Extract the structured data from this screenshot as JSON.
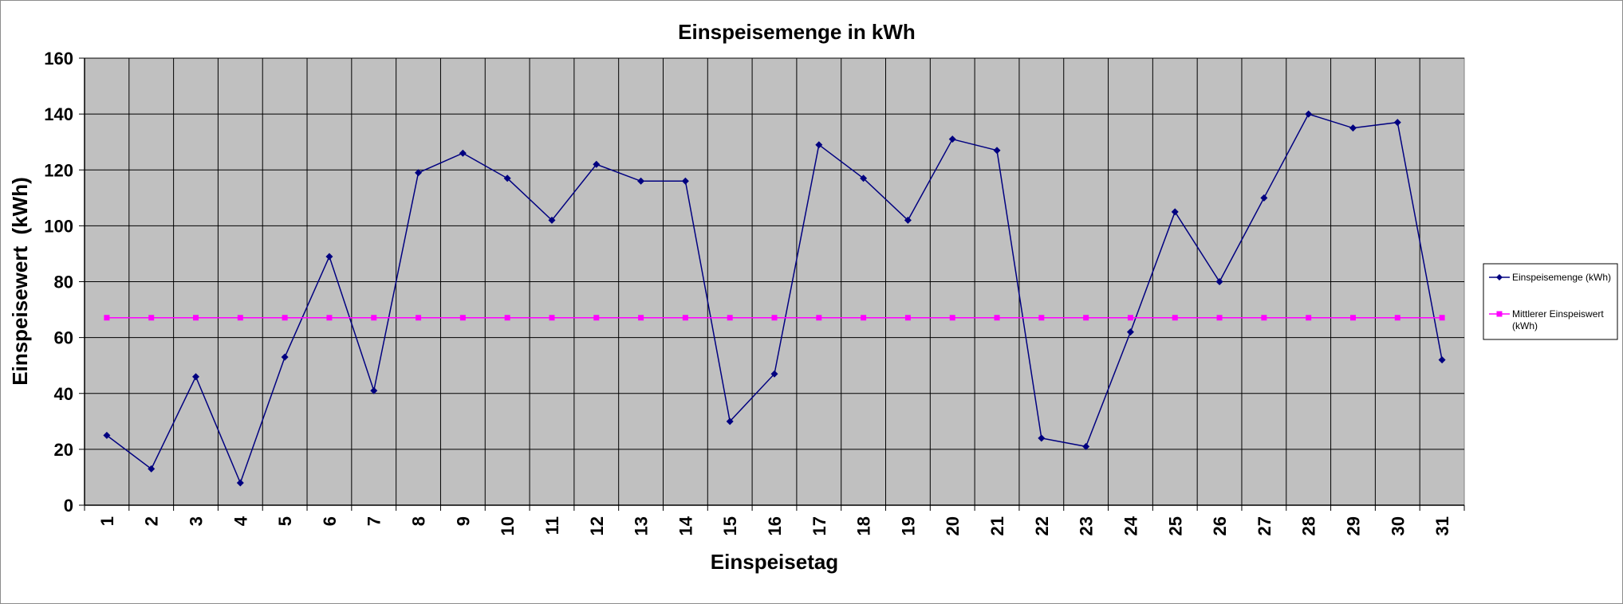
{
  "chart_data": {
    "type": "line",
    "title": "Einspeisemenge in kWh",
    "xlabel": "Einspeisetag",
    "ylabel": "Einspeisewert  (kWh)",
    "categories": [
      "1",
      "2",
      "3",
      "4",
      "5",
      "6",
      "7",
      "8",
      "9",
      "10",
      "11",
      "12",
      "13",
      "14",
      "15",
      "16",
      "17",
      "18",
      "19",
      "20",
      "21",
      "22",
      "23",
      "24",
      "25",
      "26",
      "27",
      "28",
      "29",
      "30",
      "31"
    ],
    "ylim": [
      0,
      160
    ],
    "yticks": [
      "0",
      "20",
      "40",
      "60",
      "80",
      "100",
      "120",
      "140",
      "160"
    ],
    "grid": true,
    "plot_background": "#c0c0c0",
    "legend_position": "right",
    "series": [
      {
        "name": "Einspeisemenge (kWh)",
        "color": "#000080",
        "marker": "diamond",
        "values": [
          25,
          13,
          46,
          8,
          53,
          89,
          41,
          119,
          126,
          117,
          102,
          122,
          116,
          116,
          30,
          47,
          129,
          117,
          102,
          131,
          127,
          24,
          21,
          62,
          105,
          80,
          110,
          140,
          135,
          137,
          52
        ]
      },
      {
        "name": "Mittlerer Einspeiswert (kWh)",
        "color": "#ff00ff",
        "marker": "square",
        "values": [
          67.1,
          67.1,
          67.1,
          67.1,
          67.1,
          67.1,
          67.1,
          67.1,
          67.1,
          67.1,
          67.1,
          67.1,
          67.1,
          67.1,
          67.1,
          67.1,
          67.1,
          67.1,
          67.1,
          67.1,
          67.1,
          67.1,
          67.1,
          67.1,
          67.1,
          67.1,
          67.1,
          67.1,
          67.1,
          67.1,
          67.1
        ]
      }
    ]
  }
}
